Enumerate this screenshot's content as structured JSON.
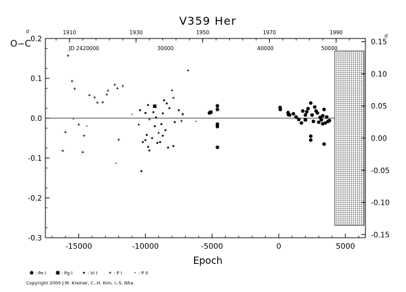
{
  "chart_data": {
    "type": "scatter",
    "title": "V359  Her",
    "ylabel": "O−C",
    "ylabel_right_suffix": "d",
    "xlabel": "Epoch",
    "xlim": [
      -17500,
      6500
    ],
    "ylim": [
      -0.3,
      0.2
    ],
    "y_right_lim": [
      -0.155,
      0.155
    ],
    "x_ticks": [
      -15000,
      -10000,
      -5000,
      0,
      5000
    ],
    "x_tick_labels": [
      "-15000",
      "-10000",
      "-5000",
      "0",
      "5000"
    ],
    "y_ticks": [
      -0.3,
      -0.2,
      -0.1,
      0.0,
      0.1,
      0.2
    ],
    "y_tick_labels": [
      "-0.3",
      "-0.2",
      "-0.1",
      "0.0",
      "0.1",
      "0.2"
    ],
    "y_right_ticks": [
      -0.15,
      -0.1,
      -0.05,
      0.0,
      0.05,
      0.1,
      0.15
    ],
    "y_right_tick_labels": [
      "-0.15",
      "-0.10",
      "-0.05",
      "0.00",
      "0.05",
      "0.10",
      "0.15"
    ],
    "top_year_ticks": [
      {
        "label": "1910",
        "epoch": -15700
      },
      {
        "label": "1930",
        "epoch": -10700
      },
      {
        "label": "1950",
        "epoch": -5700
      },
      {
        "label": "1970",
        "epoch": -700
      },
      {
        "label": "1990",
        "epoch": 4300
      }
    ],
    "jd_labels": [
      {
        "label": "JD 2420000",
        "epoch": -14600
      },
      {
        "label": "30000",
        "epoch": -8500
      },
      {
        "label": "40000",
        "epoch": -1000
      },
      {
        "label": "50000",
        "epoch": 3800
      }
    ],
    "hatched_region_epoch_start": 4200,
    "zero_line": true,
    "grid": false,
    "legend": [
      {
        "symbol": "pe",
        "label": ": Pe I"
      },
      {
        "symbol": "pg",
        "label": ": Pg I"
      },
      {
        "symbol": "vi",
        "label": ": Vi I"
      },
      {
        "symbol": "pi",
        "label": ": P I"
      },
      {
        "symbol": "pii",
        "label": ": P II"
      }
    ],
    "series": [
      {
        "symbol": "pe",
        "points": [
          [
            -4600,
            -0.073
          ],
          [
            -4600,
            0.031
          ],
          [
            -4600,
            0.022
          ],
          [
            -4600,
            -0.015
          ],
          [
            -4600,
            -0.021
          ],
          [
            -5200,
            0.013
          ],
          [
            100,
            0.027
          ],
          [
            120,
            0.022
          ],
          [
            700,
            0.014
          ],
          [
            720,
            0.009
          ],
          [
            820,
            0.008
          ],
          [
            1100,
            0.011
          ],
          [
            1500,
            -0.003
          ],
          [
            1800,
            0.018
          ],
          [
            2000,
            0.008
          ],
          [
            2100,
            0.016
          ],
          [
            2200,
            0.024
          ],
          [
            2400,
            0.038
          ],
          [
            2500,
            0.008
          ],
          [
            2600,
            -0.008
          ],
          [
            2700,
            0.028
          ],
          [
            2800,
            0.018
          ],
          [
            2900,
            0.013
          ],
          [
            3100,
            0.002
          ],
          [
            3200,
            -0.004
          ],
          [
            3300,
            0.006
          ],
          [
            3400,
            0.022
          ],
          [
            3500,
            -0.012
          ],
          [
            3600,
            0.003
          ],
          [
            3700,
            -0.008
          ],
          [
            3800,
            -0.006
          ],
          [
            2400,
            -0.045
          ],
          [
            2400,
            -0.055
          ],
          [
            3400,
            -0.065
          ],
          [
            1300,
            0.003
          ],
          [
            1700,
            -0.012
          ],
          [
            3000,
            -0.01
          ],
          [
            3300,
            -0.014
          ]
        ]
      },
      {
        "symbol": "pg",
        "points": [
          [
            -5100,
            0.015
          ],
          [
            -9300,
            0.03
          ],
          [
            2000,
            -0.004
          ]
        ]
      },
      {
        "symbol": "vi",
        "points": [
          [
            -10300,
            -0.133
          ],
          [
            -10000,
            -0.055
          ],
          [
            -9800,
            -0.072
          ],
          [
            -9700,
            -0.081
          ],
          [
            -9900,
            -0.042
          ],
          [
            -10200,
            -0.06
          ],
          [
            -9500,
            -0.05
          ],
          [
            -9100,
            -0.062
          ],
          [
            -8700,
            -0.044
          ],
          [
            -8500,
            -0.03
          ],
          [
            -8900,
            -0.06
          ],
          [
            -8300,
            -0.074
          ],
          [
            -7900,
            -0.07
          ],
          [
            -9200,
            0.002
          ],
          [
            -8700,
            0.012
          ],
          [
            -7800,
            -0.01
          ],
          [
            -10400,
            0.02
          ],
          [
            -10000,
            0.013
          ],
          [
            -9800,
            0.033
          ],
          [
            -9400,
            0.015
          ],
          [
            -8600,
            0.045
          ],
          [
            -8400,
            0.037
          ],
          [
            -8200,
            0.025
          ],
          [
            -7500,
            0.02
          ],
          [
            -7200,
            0.01
          ],
          [
            -9300,
            -0.02
          ],
          [
            -8800,
            -0.015
          ]
        ]
      },
      {
        "symbol": "pi",
        "points": [
          [
            -16200,
            -0.082
          ],
          [
            -15800,
            0.157
          ],
          [
            -15500,
            0.093
          ],
          [
            -15300,
            0.074
          ],
          [
            -15000,
            -0.016
          ],
          [
            -14600,
            -0.044
          ],
          [
            -14200,
            0.058
          ],
          [
            -13800,
            0.052
          ],
          [
            -13600,
            0.039
          ],
          [
            -12900,
            0.059
          ],
          [
            -12800,
            0.069
          ],
          [
            -12300,
            0.084
          ],
          [
            -12000,
            -0.054
          ],
          [
            -11700,
            0.081
          ],
          [
            -14700,
            -0.085
          ],
          [
            -16000,
            -0.035
          ],
          [
            -13200,
            0.04
          ],
          [
            -12100,
            0.075
          ],
          [
            -9700,
            -0.003
          ],
          [
            -9000,
            -0.037
          ],
          [
            -7900,
            0.051
          ],
          [
            -8000,
            0.07
          ],
          [
            -6800,
            0.12
          ],
          [
            -7300,
            -0.007
          ],
          [
            -10500,
            -0.016
          ]
        ]
      },
      {
        "symbol": "pii",
        "points": [
          [
            -15400,
            -0.002
          ],
          [
            -14400,
            -0.02
          ],
          [
            -12200,
            -0.113
          ],
          [
            -6200,
            -0.008
          ],
          [
            -11000,
            0.01
          ]
        ]
      }
    ]
  },
  "copyright": "Copyright 2000 J.M. Kreiner, C.-H. Kim, I.-S. Nha"
}
